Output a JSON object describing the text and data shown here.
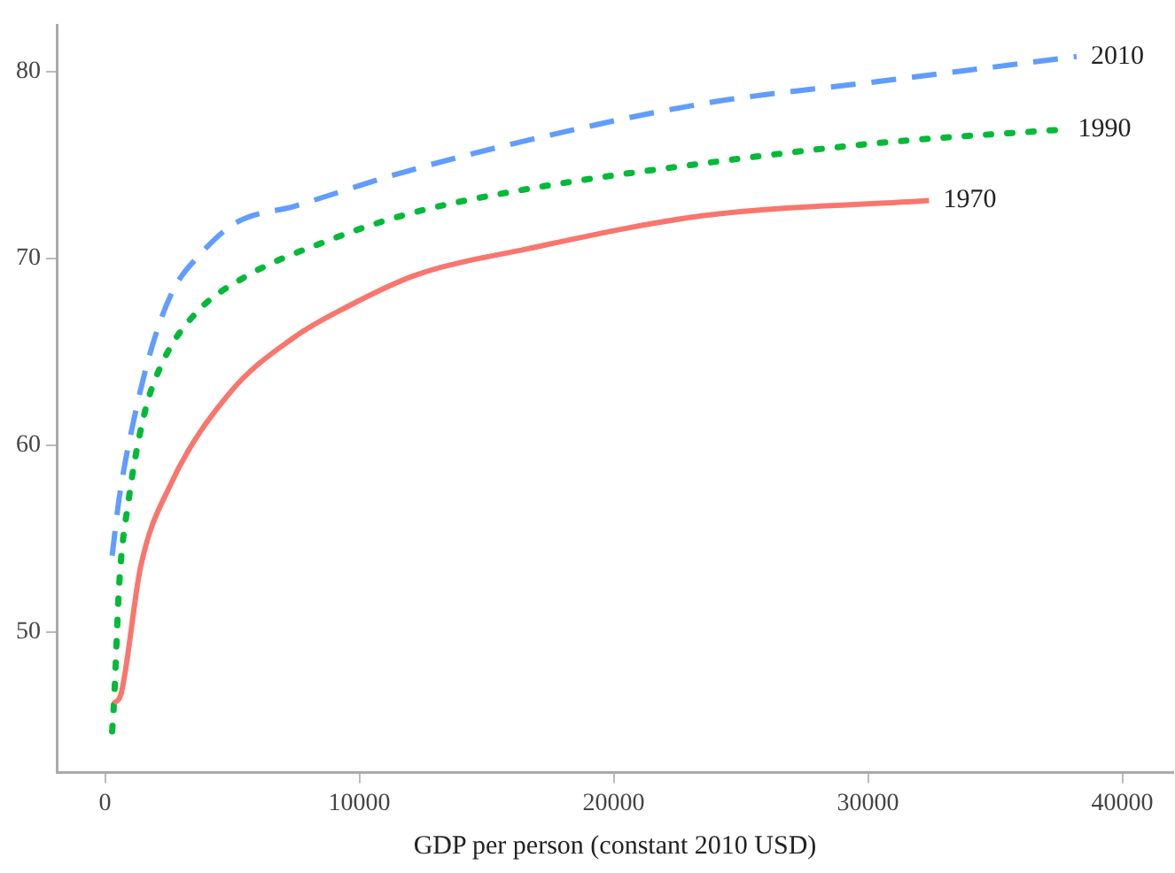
{
  "chart_data": {
    "type": "line",
    "xlabel": "GDP per person (constant 2010 USD)",
    "xlim": [
      -1900,
      42000
    ],
    "ylim": [
      42.5,
      82.5
    ],
    "xticks": [
      0,
      10000,
      20000,
      30000,
      40000
    ],
    "yticks": [
      50,
      60,
      70,
      80
    ],
    "grid": false,
    "legend": false,
    "marker": "none",
    "series": [
      {
        "name": "1970",
        "color": "#f8766d",
        "line_style": "solid",
        "x": [
          350,
          630,
          1400,
          2540,
          4900,
          7460,
          9500,
          12200,
          16550,
          23600,
          32400
        ],
        "values": [
          46.2,
          46.7,
          53.5,
          57.8,
          62.8,
          65.8,
          67.4,
          69.1,
          70.5,
          72.3,
          73.1
        ]
      },
      {
        "name": "1990",
        "color": "#00ba38",
        "line_style": "dotted",
        "x": [
          280,
          350,
          560,
          920,
          1550,
          2320,
          3590,
          5490,
          8660,
          11970,
          16550,
          23600,
          30600,
          37700
        ],
        "values": [
          44.7,
          46.2,
          52.6,
          57.0,
          61.7,
          64.6,
          67.1,
          69.0,
          70.9,
          72.4,
          73.7,
          75.1,
          76.2,
          76.9
        ]
      },
      {
        "name": "2010",
        "color": "#619cff",
        "line_style": "dashed",
        "x": [
          280,
          560,
          1060,
          1830,
          2680,
          3730,
          5140,
          7460,
          11700,
          16550,
          23600,
          30600,
          38200
        ],
        "values": [
          54.1,
          57.2,
          60.9,
          65.2,
          68.3,
          70.2,
          71.9,
          72.8,
          74.6,
          76.3,
          78.3,
          79.5,
          80.8
        ]
      }
    ]
  }
}
